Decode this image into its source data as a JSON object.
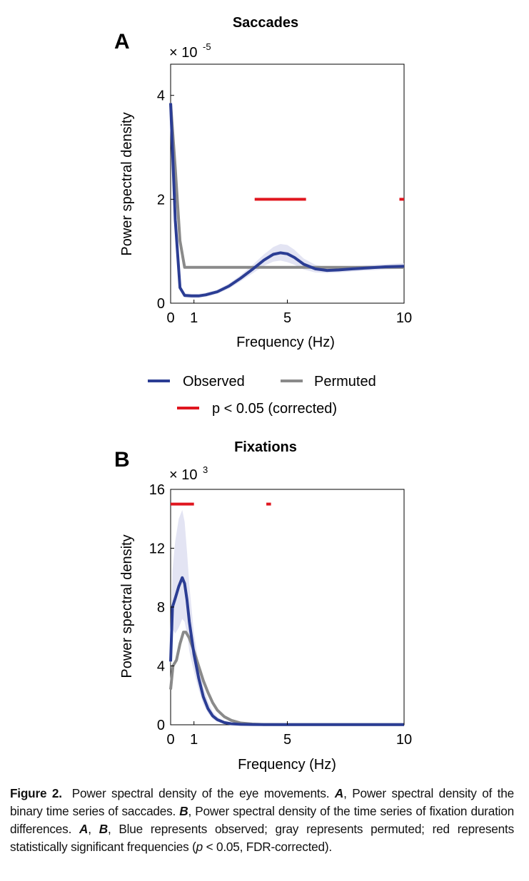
{
  "colors": {
    "observed": "#2b3d94",
    "permuted": "#8a8a8a",
    "significant": "#e0161f",
    "shade": "#d9dbef"
  },
  "legend": {
    "observed": "Observed",
    "permuted": "Permuted",
    "significant": "p < 0.05 (corrected)"
  },
  "chart_data": [
    {
      "panel": "A",
      "type": "line",
      "title": "Saccades",
      "xlabel": "Frequency (Hz)",
      "ylabel": "Power spectral density",
      "exponent_label": "× 10",
      "exponent": "-5",
      "xlim": [
        0,
        10
      ],
      "ylim": [
        0,
        4.6
      ],
      "xticks": [
        0,
        1,
        5,
        10
      ],
      "yticks": [
        0,
        2,
        4
      ],
      "ytick_labels": [
        "0",
        "2",
        "4"
      ],
      "series": [
        {
          "name": "Observed",
          "x": [
            0,
            0.2,
            0.4,
            0.6,
            0.9,
            1.2,
            1.5,
            2.0,
            2.5,
            3.0,
            3.5,
            4.0,
            4.4,
            4.7,
            5.0,
            5.3,
            5.7,
            6.2,
            6.7,
            7.2,
            7.8,
            8.5,
            9.2,
            10.0
          ],
          "y": [
            3.85,
            1.6,
            0.3,
            0.15,
            0.14,
            0.14,
            0.16,
            0.22,
            0.33,
            0.48,
            0.65,
            0.83,
            0.94,
            0.97,
            0.95,
            0.88,
            0.75,
            0.66,
            0.63,
            0.64,
            0.66,
            0.68,
            0.7,
            0.71
          ],
          "band_upper": [
            3.9,
            1.7,
            0.34,
            0.19,
            0.18,
            0.18,
            0.2,
            0.26,
            0.38,
            0.54,
            0.73,
            0.94,
            1.08,
            1.14,
            1.12,
            1.03,
            0.86,
            0.74,
            0.69,
            0.69,
            0.71,
            0.73,
            0.75,
            0.77
          ],
          "band_lower": [
            3.8,
            1.5,
            0.26,
            0.11,
            0.1,
            0.1,
            0.12,
            0.18,
            0.28,
            0.42,
            0.57,
            0.72,
            0.8,
            0.82,
            0.79,
            0.74,
            0.65,
            0.59,
            0.58,
            0.59,
            0.61,
            0.63,
            0.65,
            0.66
          ]
        },
        {
          "name": "Permuted",
          "x": [
            0,
            0.2,
            0.4,
            0.6,
            1.0,
            3.0,
            5.0,
            7.0,
            10.0
          ],
          "y": [
            3.85,
            2.6,
            1.2,
            0.69,
            0.69,
            0.69,
            0.69,
            0.69,
            0.69
          ]
        }
      ],
      "significance": {
        "y": 2.0,
        "segments": [
          [
            3.6,
            5.8
          ],
          [
            9.8,
            10.0
          ]
        ]
      }
    },
    {
      "panel": "B",
      "type": "line",
      "title": "Fixations",
      "xlabel": "Frequency (Hz)",
      "ylabel": "Power spectral density",
      "exponent_label": "× 10",
      "exponent": "3",
      "xlim": [
        0,
        10
      ],
      "ylim": [
        0,
        16
      ],
      "xticks": [
        0,
        1,
        5,
        10
      ],
      "yticks": [
        0,
        4,
        8,
        12,
        16
      ],
      "ytick_labels": [
        "0",
        "4",
        "8",
        "12",
        "16"
      ],
      "series": [
        {
          "name": "Observed",
          "x": [
            0,
            0.08,
            0.2,
            0.35,
            0.5,
            0.6,
            0.7,
            0.8,
            1.0,
            1.2,
            1.4,
            1.6,
            1.8,
            2.0,
            2.3,
            2.6,
            3.0,
            3.5,
            4.0,
            5.0,
            7.0,
            10.0
          ],
          "y": [
            4.3,
            8.0,
            8.6,
            9.4,
            10.0,
            9.6,
            8.5,
            7.0,
            4.8,
            3.2,
            1.9,
            1.1,
            0.6,
            0.35,
            0.15,
            0.07,
            0.03,
            0.02,
            0.01,
            0.01,
            0.01,
            0.01
          ],
          "band_upper": [
            5.0,
            10.5,
            12.5,
            14.0,
            14.6,
            13.8,
            11.8,
            9.5,
            6.2,
            4.2,
            2.6,
            1.6,
            0.9,
            0.55,
            0.25,
            0.12,
            0.06,
            0.04,
            0.03,
            0.02,
            0.02,
            0.02
          ],
          "band_lower": [
            3.8,
            6.5,
            6.2,
            6.6,
            7.2,
            7.0,
            6.2,
            5.0,
            3.6,
            2.4,
            1.4,
            0.8,
            0.4,
            0.2,
            0.08,
            0.03,
            0.01,
            0.0,
            0.0,
            0.0,
            0.0,
            0.0
          ]
        },
        {
          "name": "Permuted",
          "x": [
            0,
            0.1,
            0.25,
            0.4,
            0.55,
            0.65,
            0.8,
            1.0,
            1.2,
            1.4,
            1.6,
            1.8,
            2.0,
            2.3,
            2.6,
            3.0,
            3.5,
            4.0,
            5.0,
            7.0,
            10.0
          ],
          "y": [
            2.4,
            4.0,
            4.4,
            5.5,
            6.3,
            6.3,
            5.9,
            5.0,
            4.0,
            3.0,
            2.2,
            1.5,
            1.0,
            0.55,
            0.3,
            0.12,
            0.05,
            0.02,
            0.01,
            0.01,
            0.01
          ]
        }
      ],
      "significance": {
        "y": 15.0,
        "segments": [
          [
            0.0,
            1.0
          ],
          [
            4.1,
            4.3
          ]
        ]
      }
    }
  ],
  "caption": {
    "label": "Figure 2.",
    "sentence1": "Power spectral density of the eye movements.",
    "a_label": "A",
    "a_text": ", Power spectral density of the binary time series of saccades.",
    "b_label": "B",
    "b_text": ", Power spectral density of the time series of fixation duration differences.",
    "ab_a": "A",
    "ab_sep": ", ",
    "ab_b": "B",
    "ab_text": ", Blue represents observed; gray represents permuted; red represents statistically significant frequencies (",
    "p": "p",
    "p_text": " < 0.05, FDR-corrected)."
  }
}
